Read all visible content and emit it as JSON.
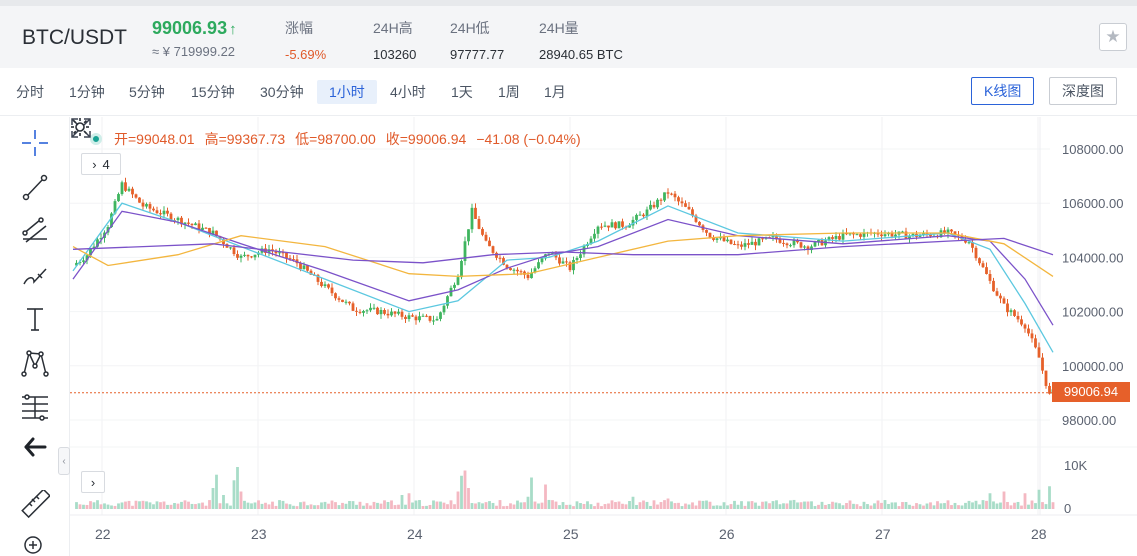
{
  "header": {
    "pair": "BTC/USDT",
    "price": "99006.93",
    "price_arrow": "↑",
    "price_cny": "≈ ¥ 719999.22",
    "stats": [
      {
        "key": "涨幅",
        "value": "-5.69%",
        "trend": "down"
      },
      {
        "key": "24H高",
        "value": "103260",
        "trend": ""
      },
      {
        "key": "24H低",
        "value": "97777.77",
        "trend": ""
      },
      {
        "key": "24H量",
        "value": "28940.65 BTC",
        "trend": ""
      }
    ],
    "favorite_icon": "star-icon"
  },
  "timeframes": [
    "分时",
    "1分钟",
    "5分钟",
    "15分钟",
    "30分钟",
    "1小时",
    "4小时",
    "1天",
    "1周",
    "1月"
  ],
  "active_timeframe": "1小时",
  "views": {
    "kline": "K线图",
    "depth": "深度图",
    "active": "K线图"
  },
  "tools": [
    "crosshair-icon",
    "trend-line-icon",
    "parallel-channel-icon",
    "brush-icon",
    "text-icon",
    "pattern-icon",
    "fib-levels-icon",
    "back-arrow-icon",
    "ruler-icon",
    "zoom-icon"
  ],
  "ohlc": {
    "open": "开=99048.01",
    "high": "高=99367.73",
    "low": "低=98700.00",
    "close": "收=99006.94",
    "change": "−41.08 (−0.04%)"
  },
  "indicator_toggle": {
    "arrow": "›",
    "count": "4"
  },
  "volume_toggle": {
    "arrow": "›"
  },
  "current_price_label": "99006.94",
  "colors": {
    "up": "#3fb55f",
    "down": "#e6602a",
    "ma1": "#5cc8e0",
    "ma2": "#7b52c9",
    "ma3": "#f3b63f",
    "vol_up": "#a8dcc8",
    "vol_down": "#f4b8c2",
    "accent": "#2b63d9"
  },
  "chart_data": {
    "type": "candlestick",
    "y_ticks": [
      "108000.00",
      "106000.00",
      "104000.00",
      "102000.00",
      "100000.00",
      "98000.00"
    ],
    "ylim": [
      97000,
      108800
    ],
    "x_ticks": [
      "22",
      "23",
      "24",
      "25",
      "26",
      "27",
      "28"
    ],
    "volume_ticks": [
      "10K",
      "0"
    ],
    "current_price": 99006.94,
    "candle_anchors": [
      [
        0,
        103700
      ],
      [
        4,
        104100
      ],
      [
        10,
        105200
      ],
      [
        14,
        106700
      ],
      [
        20,
        105900
      ],
      [
        30,
        105400
      ],
      [
        40,
        104900
      ],
      [
        48,
        104000
      ],
      [
        56,
        104300
      ],
      [
        64,
        103800
      ],
      [
        72,
        102900
      ],
      [
        80,
        102100
      ],
      [
        88,
        102000
      ],
      [
        96,
        101800
      ],
      [
        104,
        101700
      ],
      [
        110,
        103400
      ],
      [
        114,
        105700
      ],
      [
        118,
        104500
      ],
      [
        124,
        103700
      ],
      [
        130,
        103300
      ],
      [
        136,
        104200
      ],
      [
        142,
        103600
      ],
      [
        150,
        105200
      ],
      [
        158,
        105200
      ],
      [
        164,
        105700
      ],
      [
        170,
        106400
      ],
      [
        176,
        105700
      ],
      [
        182,
        104800
      ],
      [
        190,
        104400
      ],
      [
        200,
        104700
      ],
      [
        210,
        104400
      ],
      [
        220,
        104800
      ],
      [
        230,
        104900
      ],
      [
        240,
        104800
      ],
      [
        250,
        104900
      ],
      [
        256,
        104600
      ],
      [
        262,
        103100
      ],
      [
        266,
        102200
      ],
      [
        272,
        101500
      ],
      [
        276,
        100300
      ],
      [
        279,
        98900
      ],
      [
        280,
        99010
      ]
    ],
    "ma_lines": [
      {
        "color": "ma1",
        "points": [
          [
            0,
            103500
          ],
          [
            14,
            106000
          ],
          [
            30,
            105300
          ],
          [
            48,
            104400
          ],
          [
            72,
            103200
          ],
          [
            96,
            102000
          ],
          [
            110,
            102400
          ],
          [
            124,
            103900
          ],
          [
            136,
            104000
          ],
          [
            150,
            104600
          ],
          [
            170,
            105900
          ],
          [
            190,
            104900
          ],
          [
            220,
            104600
          ],
          [
            250,
            104900
          ],
          [
            262,
            104300
          ],
          [
            272,
            102300
          ],
          [
            280,
            100500
          ]
        ]
      },
      {
        "color": "ma2",
        "points": [
          [
            0,
            103200
          ],
          [
            14,
            105700
          ],
          [
            30,
            105300
          ],
          [
            48,
            104500
          ],
          [
            72,
            103500
          ],
          [
            96,
            102400
          ],
          [
            110,
            102800
          ],
          [
            124,
            103600
          ],
          [
            136,
            104100
          ],
          [
            150,
            104400
          ],
          [
            170,
            105400
          ],
          [
            190,
            104800
          ],
          [
            220,
            104500
          ],
          [
            250,
            104800
          ],
          [
            262,
            104600
          ],
          [
            272,
            103200
          ],
          [
            280,
            101500
          ]
        ]
      },
      {
        "color": "ma3",
        "points": [
          [
            0,
            104400
          ],
          [
            10,
            103700
          ],
          [
            30,
            104100
          ],
          [
            48,
            104800
          ],
          [
            72,
            104400
          ],
          [
            96,
            103400
          ],
          [
            110,
            103300
          ],
          [
            130,
            103400
          ],
          [
            150,
            104000
          ],
          [
            170,
            104600
          ],
          [
            190,
            104800
          ],
          [
            220,
            104900
          ],
          [
            250,
            104900
          ],
          [
            266,
            104500
          ],
          [
            280,
            103300
          ]
        ]
      },
      {
        "color": "ma2",
        "points": [
          [
            0,
            104300
          ],
          [
            20,
            104400
          ],
          [
            40,
            104500
          ],
          [
            60,
            104200
          ],
          [
            80,
            103900
          ],
          [
            100,
            103800
          ],
          [
            120,
            104100
          ],
          [
            140,
            104200
          ],
          [
            160,
            104100
          ],
          [
            190,
            104100
          ],
          [
            220,
            104400
          ],
          [
            250,
            104600
          ],
          [
            266,
            104700
          ],
          [
            280,
            104100
          ]
        ]
      }
    ],
    "volume_bars_highlight": [
      [
        40,
        6000
      ],
      [
        41,
        9800
      ],
      [
        43,
        4000
      ],
      [
        46,
        8200
      ],
      [
        47,
        12000
      ],
      [
        48,
        5000
      ],
      [
        94,
        4000
      ],
      [
        96,
        4500
      ],
      [
        110,
        5000
      ],
      [
        111,
        9500
      ],
      [
        112,
        11000
      ],
      [
        113,
        6000
      ],
      [
        130,
        3500
      ],
      [
        131,
        9000
      ],
      [
        135,
        7000
      ],
      [
        160,
        3500
      ],
      [
        170,
        3000
      ],
      [
        262,
        4500
      ],
      [
        266,
        5000
      ],
      [
        272,
        4500
      ],
      [
        276,
        5500
      ],
      [
        279,
        6500
      ]
    ]
  }
}
